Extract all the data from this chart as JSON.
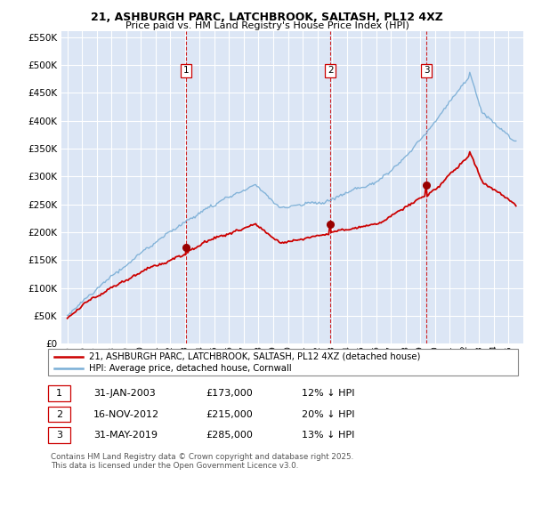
{
  "title": "21, ASHBURGH PARC, LATCHBROOK, SALTASH, PL12 4XZ",
  "subtitle": "Price paid vs. HM Land Registry's House Price Index (HPI)",
  "legend_line1": "21, ASHBURGH PARC, LATCHBROOK, SALTASH, PL12 4XZ (detached house)",
  "legend_line2": "HPI: Average price, detached house, Cornwall",
  "footer": "Contains HM Land Registry data © Crown copyright and database right 2025.\nThis data is licensed under the Open Government Licence v3.0.",
  "sale_points": [
    {
      "label": "1",
      "date_num": 2003.08,
      "price": 173000
    },
    {
      "label": "2",
      "date_num": 2012.88,
      "price": 215000
    },
    {
      "label": "3",
      "date_num": 2019.41,
      "price": 285000
    }
  ],
  "sale_vlines": [
    2003.08,
    2012.88,
    2019.41
  ],
  "ylim": [
    0,
    560000
  ],
  "yticks": [
    0,
    50000,
    100000,
    150000,
    200000,
    250000,
    300000,
    350000,
    400000,
    450000,
    500000,
    550000
  ],
  "bg_color": "#dce6f5",
  "grid_color": "#ffffff",
  "red_color": "#cc0000",
  "blue_color": "#7aaed6",
  "vline_color": "#cc0000",
  "table_rows": [
    {
      "num": "1",
      "date": "31-JAN-2003",
      "price": "£173,000",
      "pct": "12% ↓ HPI"
    },
    {
      "num": "2",
      "date": "16-NOV-2012",
      "price": "£215,000",
      "pct": "20% ↓ HPI"
    },
    {
      "num": "3",
      "date": "31-MAY-2019",
      "price": "£285,000",
      "pct": "13% ↓ HPI"
    }
  ]
}
